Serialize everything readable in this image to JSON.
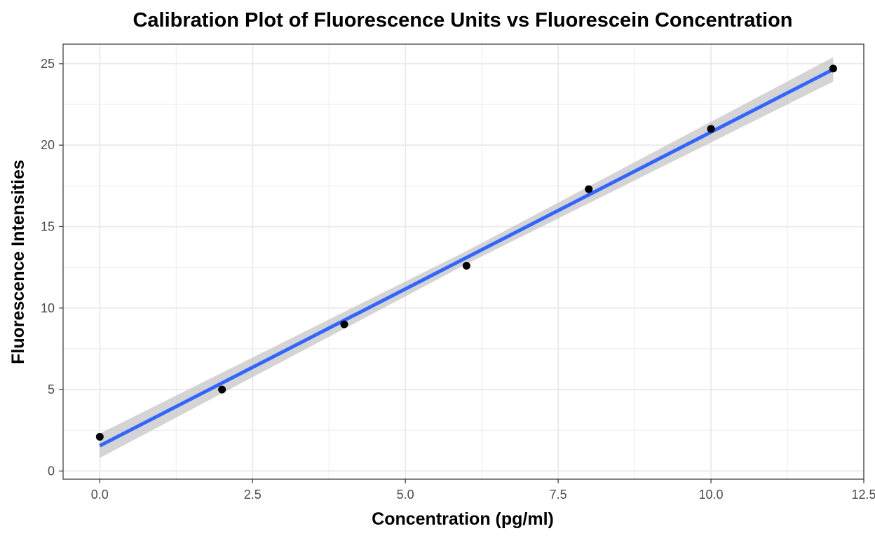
{
  "chart_data": {
    "type": "scatter",
    "title": "Calibration Plot of Fluorescence Units vs Fluorescein Concentration",
    "xlabel": "Concentration (pg/ml)",
    "ylabel": "Fluorescence Intensities",
    "xlim": [
      -0.6,
      12.5
    ],
    "ylim": [
      -0.5,
      26.2
    ],
    "x_ticks": [
      0,
      2.5,
      5,
      7.5,
      10,
      12.5
    ],
    "x_tick_labels": [
      "0.0",
      "2.5",
      "5.0",
      "7.5",
      "10.0",
      "12.5"
    ],
    "y_ticks": [
      0,
      5,
      10,
      15,
      20,
      25
    ],
    "y_tick_labels": [
      "0",
      "5",
      "10",
      "15",
      "20",
      "25"
    ],
    "grid": true,
    "points": [
      {
        "x": 0,
        "y": 2.1
      },
      {
        "x": 2,
        "y": 5.0
      },
      {
        "x": 4,
        "y": 9.0
      },
      {
        "x": 6,
        "y": 12.6
      },
      {
        "x": 8,
        "y": 17.3
      },
      {
        "x": 10,
        "y": 21.0
      },
      {
        "x": 12,
        "y": 24.7
      }
    ],
    "fit_line": {
      "method": "linear",
      "start": {
        "x": 0,
        "y": 1.55
      },
      "end": {
        "x": 12,
        "y": 24.65
      },
      "confidence_band": [
        {
          "x": 0,
          "lower": 0.8,
          "upper": 2.3
        },
        {
          "x": 6,
          "lower": 12.7,
          "upper": 13.5
        },
        {
          "x": 12,
          "lower": 23.9,
          "upper": 25.4
        }
      ]
    },
    "colors": {
      "points": "#000000",
      "fit_line": "#3366ff",
      "band": "#bdbdbd",
      "grid": "#ebebeb",
      "panel_border": "#333333"
    }
  }
}
